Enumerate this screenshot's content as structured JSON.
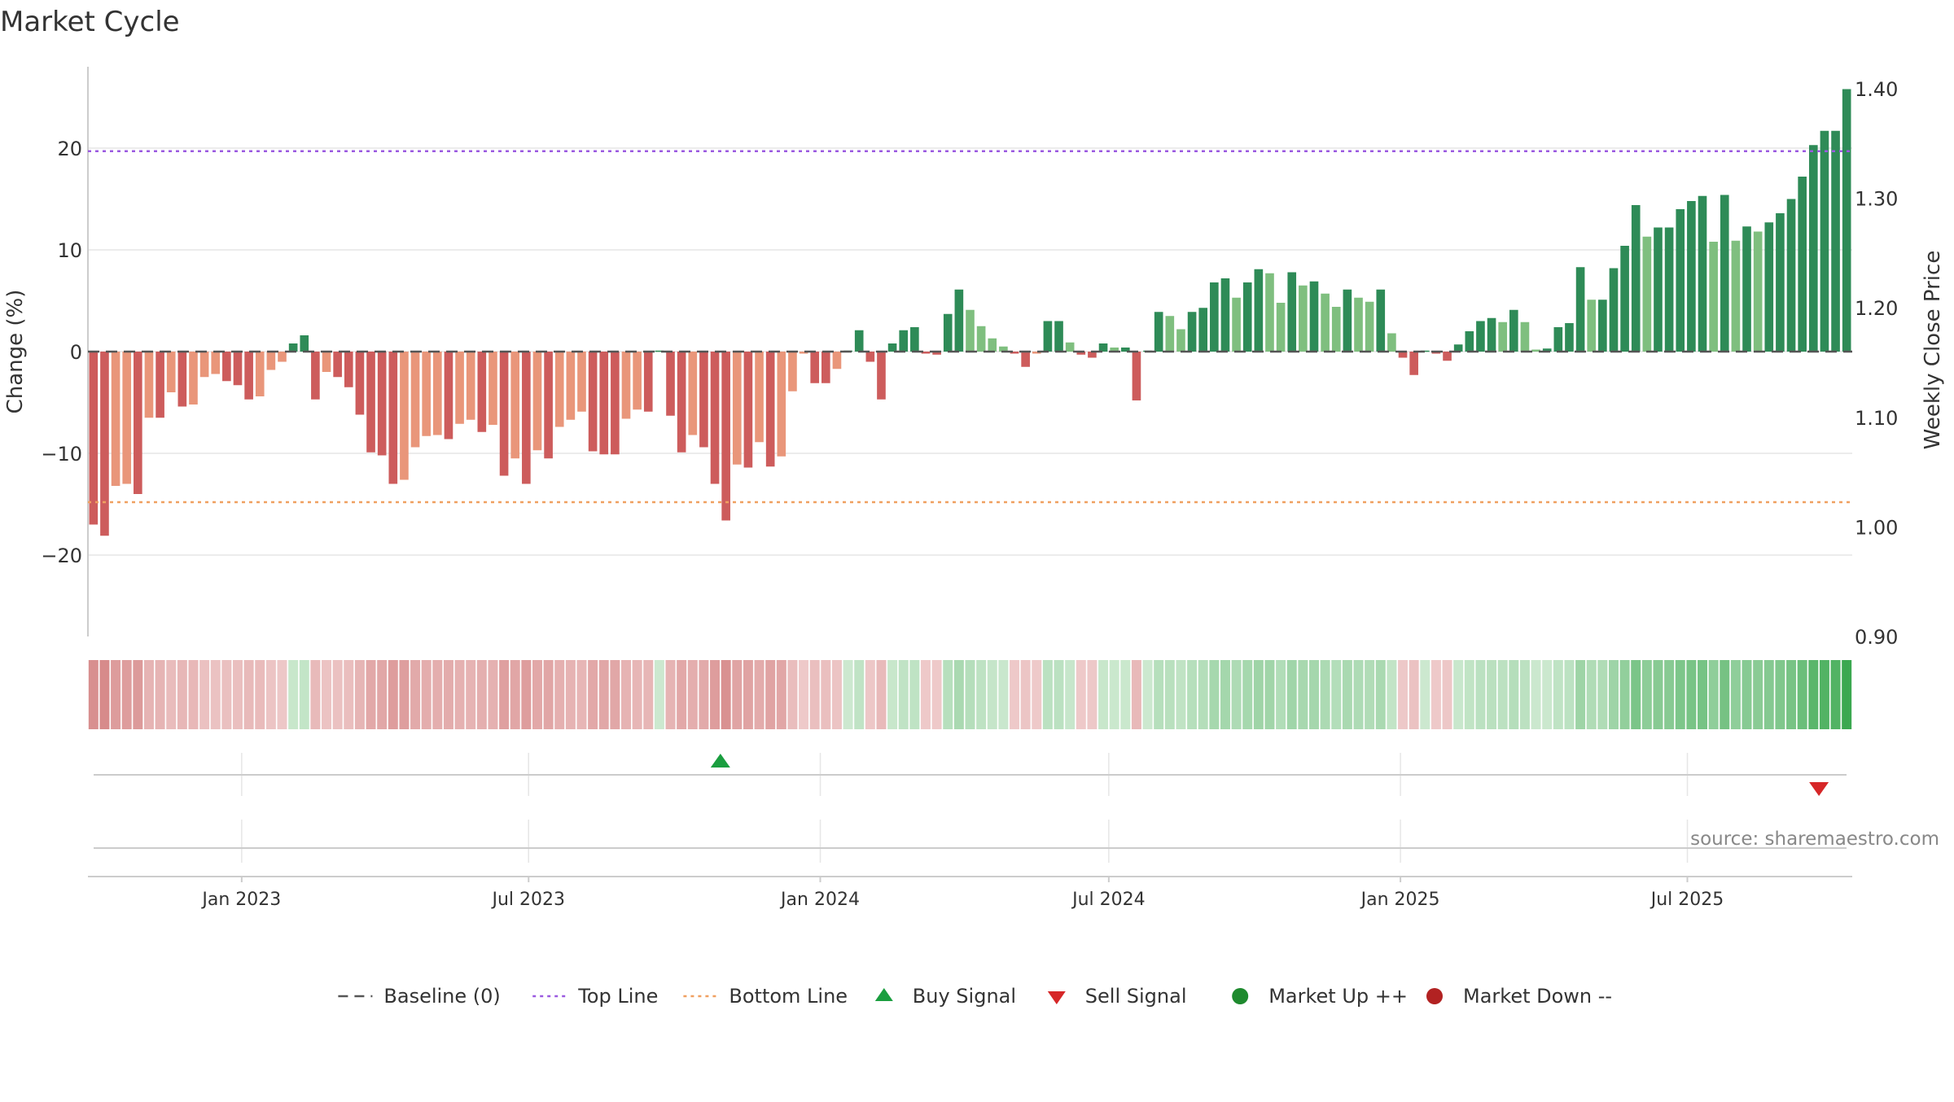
{
  "page": {
    "title": "Market Cycle",
    "source_note": "source: sharemaestro.com"
  },
  "chart_data": {
    "type": "bar",
    "title": "Market Cycle",
    "ylabel_left": "Change (%)",
    "ylabel_right": "Weekly Close Price",
    "ylim_left": [
      -28,
      28
    ],
    "ylim_right": [
      0.9,
      1.42
    ],
    "yticks_left": [
      20,
      10,
      0,
      -10,
      -20
    ],
    "yticks_left_labels": [
      "20",
      "10",
      "0",
      "−10",
      "−20"
    ],
    "yticks_right": [
      1.4,
      1.3,
      1.2,
      1.1,
      1.0,
      0.9
    ],
    "yticks_right_labels": [
      "1.40",
      "1.30",
      "1.20",
      "1.10",
      "1.00",
      "0.90"
    ],
    "x_start": "2022-09-26",
    "x_end": "2025-10-13",
    "xticks": [
      {
        "date": "2023-01-01",
        "label": "Jan 2023"
      },
      {
        "date": "2023-07-01",
        "label": "Jul 2023"
      },
      {
        "date": "2024-01-01",
        "label": "Jan 2024"
      },
      {
        "date": "2024-07-01",
        "label": "Jul 2024"
      },
      {
        "date": "2025-01-01",
        "label": "Jan 2025"
      },
      {
        "date": "2025-07-01",
        "label": "Jul 2025"
      }
    ],
    "top_line": 19.7,
    "bottom_line": -14.8,
    "baseline": 0,
    "colors": {
      "strong_up": "#2e8b57",
      "weak_up": "#7fbf7f",
      "strong_down": "#cd5c5c",
      "weak_down": "#e9967a",
      "top_line": "#9b59e0",
      "bottom_line": "#f0a060",
      "baseline": "#555555",
      "buy_signal": "#1a9e3f",
      "sell_signal": "#d62728",
      "market_up": "#1e8a2e",
      "market_down": "#b22222",
      "grid": "#e6e6e6"
    },
    "series": [
      {
        "values": [
          -17.0,
          -18.1,
          -13.2,
          -13.0,
          -14.0,
          -6.5,
          -6.5,
          -4.0,
          -5.4,
          -5.2,
          -2.5,
          -2.2,
          -2.9,
          -3.3,
          -4.7,
          -4.4,
          -1.8,
          -1.0,
          0.8,
          1.6,
          -4.7,
          -2.0,
          -2.5,
          -3.5,
          -6.2,
          -9.9,
          -10.2,
          -13.0,
          -12.6,
          -9.4,
          -8.3,
          -8.2,
          -8.6,
          -7.1,
          -6.7,
          -7.9,
          -7.2,
          -12.2,
          -10.5,
          -13.0,
          -9.7,
          -10.5,
          -7.4,
          -6.7,
          -5.9,
          -9.8,
          -10.1,
          -10.1,
          -6.6,
          -5.7,
          -5.9,
          0.1,
          -6.3,
          -9.9,
          -8.2,
          -9.4,
          -13.0,
          -16.6,
          -11.1,
          -11.4,
          -8.9,
          -11.3,
          -10.3,
          -3.9,
          -0.2,
          -3.1,
          -3.1,
          -1.7,
          0.1,
          2.1,
          -1.0,
          -4.7,
          0.8,
          2.1,
          2.4,
          -0.2,
          -0.3,
          3.7,
          6.1,
          4.1,
          2.5,
          1.3,
          0.5,
          -0.2,
          -1.5,
          -0.2,
          3.0,
          3.0,
          0.9,
          -0.3,
          -0.6,
          0.8,
          0.4,
          0.4,
          -4.8,
          0.1,
          3.9,
          3.5,
          2.2,
          3.9,
          4.3,
          6.8,
          7.2,
          5.3,
          6.8,
          8.1,
          7.7,
          4.8,
          7.8,
          6.5,
          6.9,
          5.7,
          4.4,
          6.1,
          5.3,
          4.9,
          6.1,
          1.8,
          -0.6,
          -2.3,
          0.1,
          -0.2,
          -0.9,
          0.7,
          2.0,
          3.0,
          3.3,
          2.9,
          4.1,
          2.9,
          0.2,
          0.3,
          2.4,
          2.8,
          8.3,
          5.1,
          5.1,
          8.2,
          10.4,
          14.4,
          11.3,
          12.2,
          12.2,
          14.0,
          14.8,
          15.3,
          10.8,
          15.4,
          10.9,
          12.3,
          11.8,
          12.7,
          13.6,
          15.0,
          17.2,
          20.3,
          21.7,
          21.7,
          25.8
        ]
      }
    ],
    "buy_signals": [
      "2023-10-30"
    ],
    "sell_signals": [
      "2025-09-22"
    ],
    "market_up_markers": [],
    "market_down_markers": [],
    "legend": {
      "placement": "bottom-center",
      "items": [
        {
          "key": "baseline",
          "label": "Baseline (0)"
        },
        {
          "key": "top_line",
          "label": "Top Line"
        },
        {
          "key": "bottom_line",
          "label": "Bottom Line"
        },
        {
          "key": "buy_signal",
          "label": "Buy Signal"
        },
        {
          "key": "sell_signal",
          "label": "Sell Signal"
        },
        {
          "key": "market_up",
          "label": "Market Up ++"
        },
        {
          "key": "market_down",
          "label": "Market Down --"
        }
      ]
    }
  }
}
